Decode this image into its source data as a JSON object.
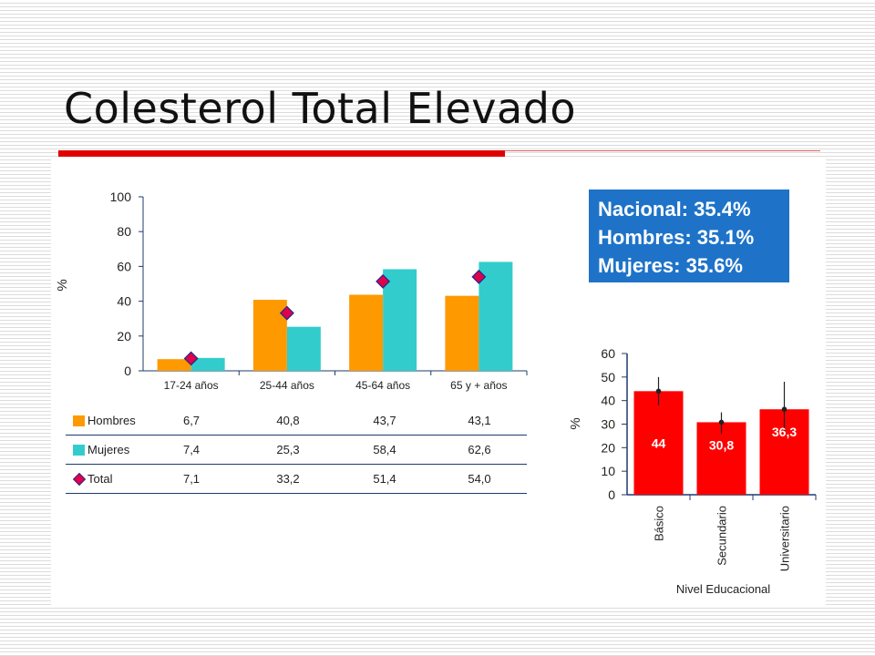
{
  "slide": {
    "title": "Colesterol Total Elevado"
  },
  "stats": [
    {
      "label": "Nacional: 35.4%"
    },
    {
      "label": "Hombres: 35.1%"
    },
    {
      "label": "Mujeres: 35.6%"
    }
  ],
  "colors": {
    "hombres": "#ff9900",
    "mujeres": "#33cccc",
    "total_marker": "#e0004a",
    "edu_bar": "#ff0000",
    "stats_box": "#1e73c8"
  },
  "legend": {
    "hombres": "Hombres",
    "mujeres": "Mujeres",
    "total": "Total"
  },
  "table_values": {
    "hombres": [
      "6,7",
      "40,8",
      "43,7",
      "43,1"
    ],
    "mujeres": [
      "7,4",
      "25,3",
      "58,4",
      "62,6"
    ],
    "total": [
      "7,1",
      "33,2",
      "51,4",
      "54,0"
    ]
  },
  "chart_data": [
    {
      "type": "bar",
      "ylabel": "%",
      "xlabel": "",
      "ylim": [
        0,
        100
      ],
      "yticks": [
        0,
        20,
        40,
        60,
        80,
        100
      ],
      "categories": [
        "17-24 años",
        "25-44 años",
        "45-64 años",
        "65 y  + años"
      ],
      "series": [
        {
          "name": "Hombres",
          "values": [
            6.7,
            40.8,
            43.7,
            43.1
          ]
        },
        {
          "name": "Mujeres",
          "values": [
            7.4,
            25.3,
            58.4,
            62.6
          ]
        },
        {
          "name": "Total",
          "values": [
            7.1,
            33.2,
            51.4,
            54.0
          ],
          "style": "marker"
        }
      ]
    },
    {
      "type": "bar",
      "ylabel": "%",
      "xlabel": "Nivel Educacional",
      "ylim": [
        0,
        60
      ],
      "yticks": [
        0,
        10,
        20,
        30,
        40,
        50,
        60
      ],
      "categories": [
        "Básico",
        "Secundario",
        "Universitario"
      ],
      "values": [
        44,
        30.8,
        36.3
      ],
      "value_labels": [
        "44",
        "30,8",
        "36,3"
      ],
      "error_bars": [
        [
          38,
          50
        ],
        [
          26,
          35
        ],
        [
          26,
          48
        ]
      ]
    }
  ]
}
